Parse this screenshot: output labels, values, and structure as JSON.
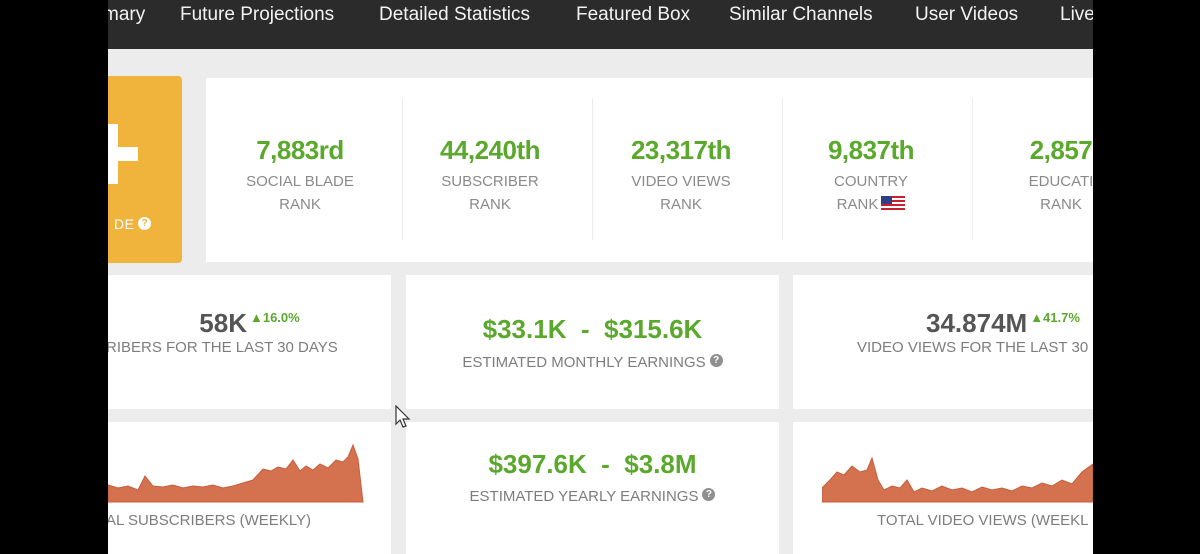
{
  "nav": {
    "items": [
      {
        "label": "mary"
      },
      {
        "label": "Future Projections"
      },
      {
        "label": "Detailed Statistics"
      },
      {
        "label": "Featured Box"
      },
      {
        "label": "Similar Channels"
      },
      {
        "label": "User Videos"
      },
      {
        "label": "Live"
      }
    ]
  },
  "grade": {
    "label": "DE"
  },
  "ranks": [
    {
      "value": "7,883rd",
      "line1": "SOCIAL BLADE",
      "line2": "RANK"
    },
    {
      "value": "44,240th",
      "line1": "SUBSCRIBER",
      "line2": "RANK"
    },
    {
      "value": "23,317th",
      "line1": "VIDEO VIEWS",
      "line2": "RANK"
    },
    {
      "value": "9,837th",
      "line1": "COUNTRY",
      "line2": "RANK"
    },
    {
      "value": "2,857",
      "line1": "EDUCATI",
      "line2": "RANK"
    }
  ],
  "stats": {
    "subscribers_30": {
      "value": "58K",
      "change": "▲16.0%",
      "label": "RIBERS FOR THE LAST 30 DAYS"
    },
    "monthly_earnings": {
      "value": "$33.1K  -  $315.6K",
      "label": "ESTIMATED MONTHLY EARNINGS"
    },
    "views_30": {
      "value": "34.874M",
      "change": "▲41.7%",
      "label": "VIDEO VIEWS FOR THE LAST 30 D"
    },
    "yearly_earnings": {
      "value": "$397.6K  -  $3.8M",
      "label": "ESTIMATED YEARLY EARNINGS"
    },
    "subscribers_weekly": {
      "label": "AL SUBSCRIBERS (WEEKLY)"
    },
    "views_weekly": {
      "label": "TOTAL VIDEO VIEWS (WEEKL"
    }
  },
  "colors": {
    "nav_bg": "#2b2b2b",
    "accent_green": "#5aa82c",
    "grade_orange": "#f0b43c",
    "sparkline_fill": "#d4714f"
  },
  "icons": {
    "help": "question-circle-icon",
    "flag": "us-flag-icon",
    "cursor": "mouse-pointer-icon"
  }
}
